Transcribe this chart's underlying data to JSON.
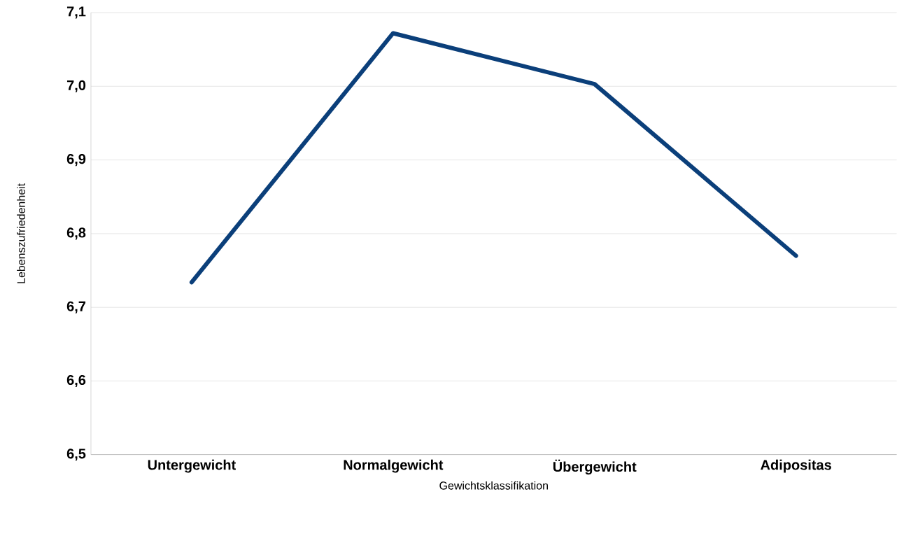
{
  "chart_data": {
    "type": "line",
    "xlabel": "Gewichtsklassifikation",
    "ylabel": "Lebenszufriedenheit",
    "categories": [
      "Untergewicht",
      "Normalgewicht",
      "Übergewicht",
      "Adipositas"
    ],
    "series": [
      {
        "color": "#0b3f7a",
        "values": [
          6.734,
          7.072,
          7.003,
          6.77
        ]
      }
    ],
    "ylim": [
      6.5,
      7.1
    ],
    "yticks": [
      {
        "value": 6.5,
        "label": "6,5"
      },
      {
        "value": 6.6,
        "label": "6,6"
      },
      {
        "value": 6.7,
        "label": "6,7"
      },
      {
        "value": 6.8,
        "label": "6,8"
      },
      {
        "value": 6.9,
        "label": "6,9"
      },
      {
        "value": 7.0,
        "label": "7,0"
      },
      {
        "value": 7.1,
        "label": "7,1"
      }
    ],
    "grid": "y",
    "marker": "none",
    "line_style": "solid"
  }
}
